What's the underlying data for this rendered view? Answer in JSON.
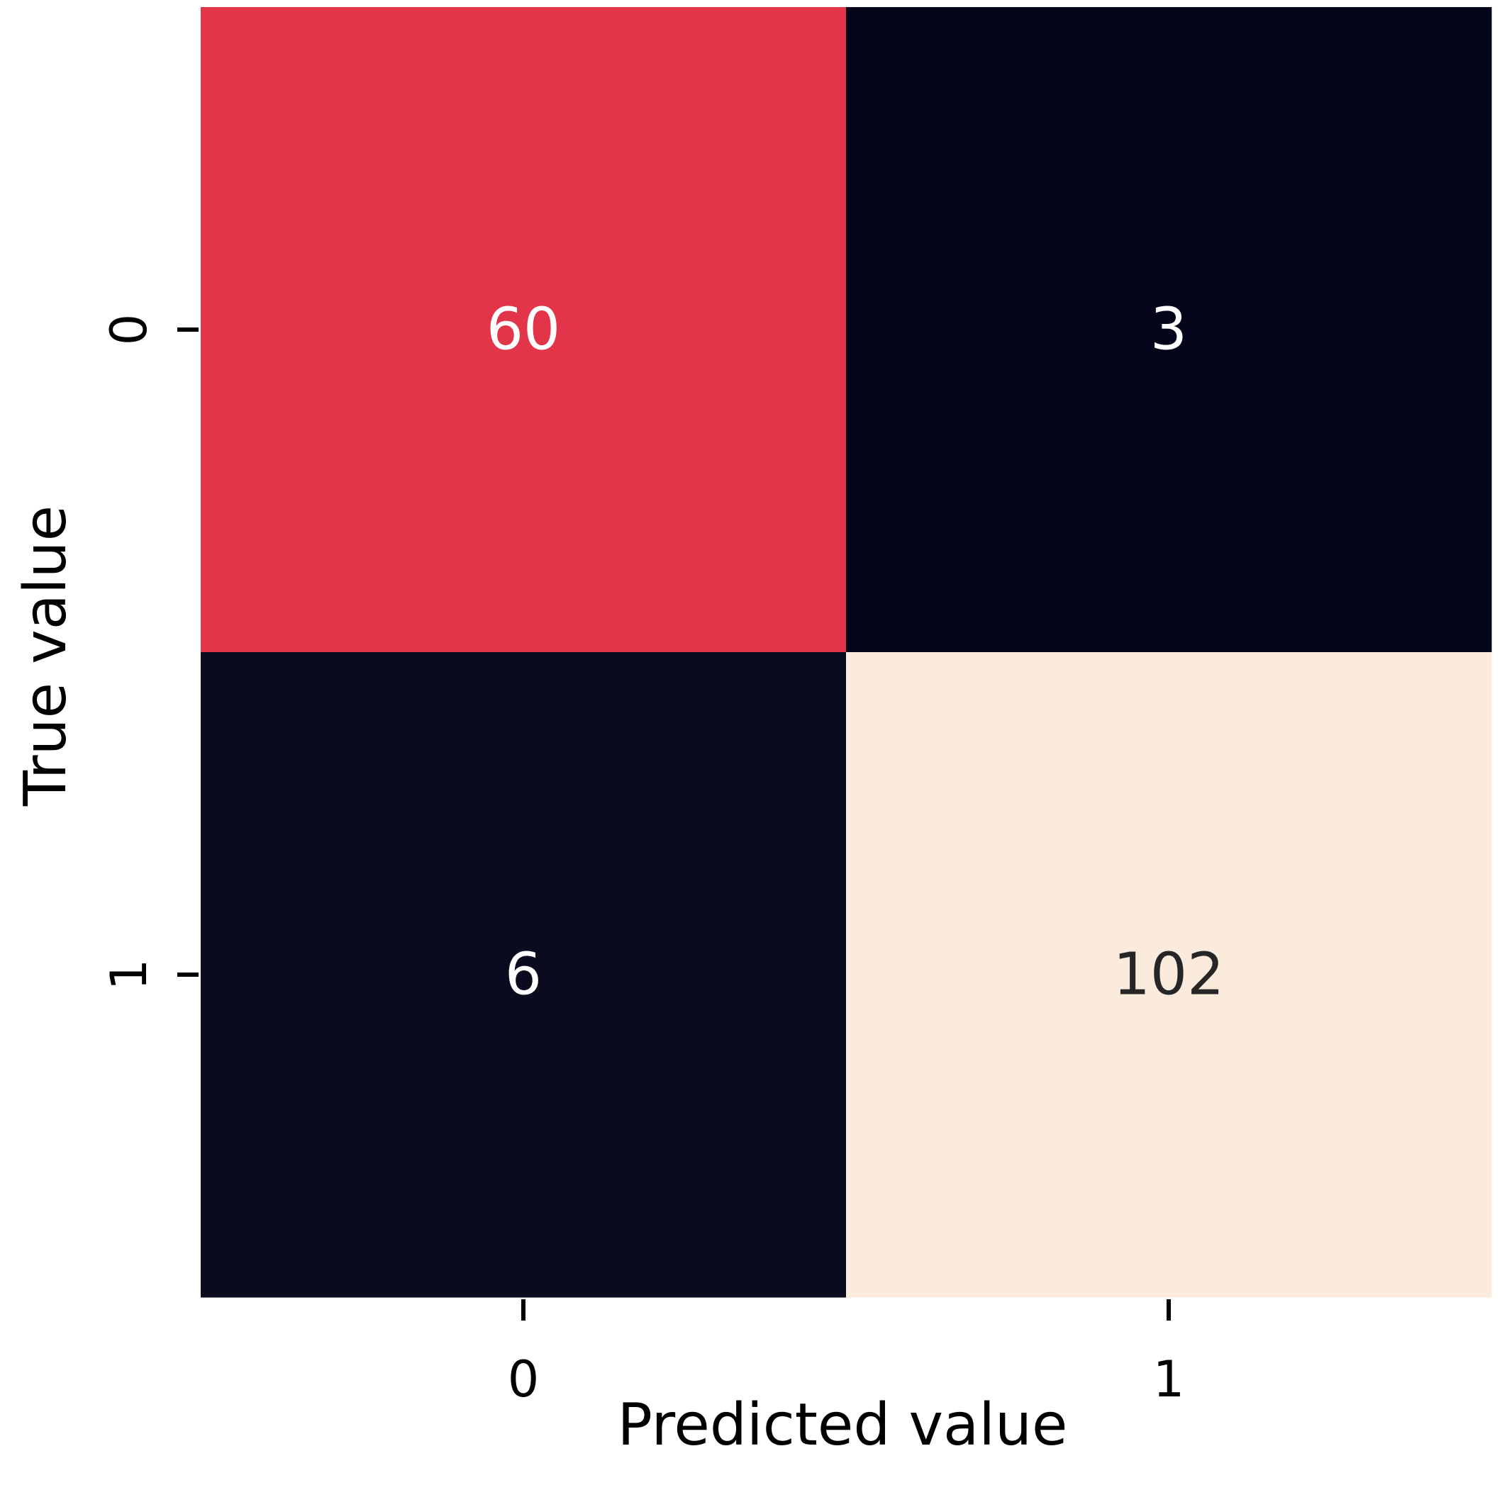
{
  "chart_data": {
    "type": "heatmap",
    "title": "",
    "xlabel": "Predicted value",
    "ylabel": "True value",
    "x_categories": [
      "0",
      "1"
    ],
    "y_categories": [
      "0",
      "1"
    ],
    "values": [
      [
        60,
        3
      ],
      [
        6,
        102
      ]
    ],
    "colormap": "rocket",
    "colorbar": false,
    "annotated": true,
    "cell_colors": [
      [
        "#e2354a",
        "#03061b"
      ],
      [
        "#0b0b20",
        "#faebdd"
      ]
    ],
    "annotation_colors": [
      [
        "#ffffff",
        "#ffffff"
      ],
      [
        "#ffffff",
        "#262626"
      ]
    ]
  }
}
